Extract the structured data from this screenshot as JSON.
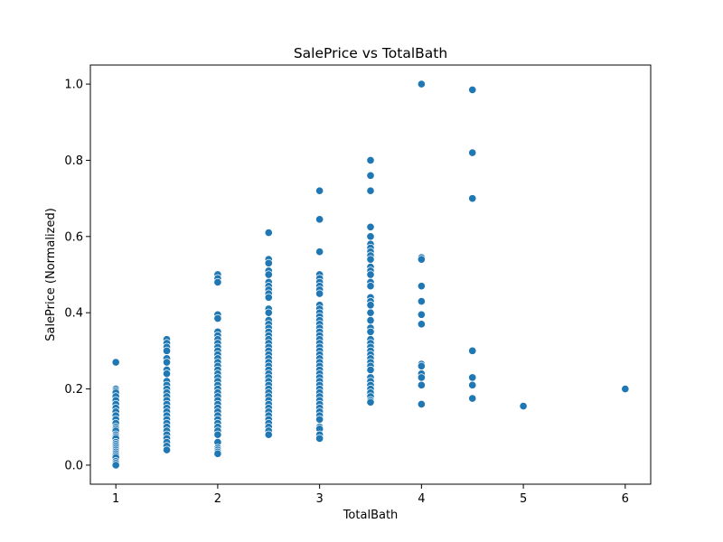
{
  "chart_data": {
    "type": "scatter",
    "title": "SalePrice vs TotalBath",
    "xlabel": "TotalBath",
    "ylabel": "SalePrice (Normalized)",
    "xlim": [
      0.75,
      6.25
    ],
    "ylim": [
      -0.05,
      1.05
    ],
    "x_ticks": [
      1,
      2,
      3,
      4,
      5,
      6
    ],
    "y_ticks": [
      0.0,
      0.2,
      0.4,
      0.6,
      0.8,
      1.0
    ],
    "y_tick_labels": [
      "0.0",
      "0.2",
      "0.4",
      "0.6",
      "0.8",
      "1.0"
    ],
    "grid": false,
    "legend": "none",
    "marker_color": "#1f77b4",
    "points": [
      {
        "x": 1,
        "y": 0.27
      },
      {
        "x": 1,
        "y": 0.2
      },
      {
        "x": 1,
        "y": 0.195
      },
      {
        "x": 1,
        "y": 0.19
      },
      {
        "x": 1,
        "y": 0.18
      },
      {
        "x": 1,
        "y": 0.17
      },
      {
        "x": 1,
        "y": 0.16
      },
      {
        "x": 1,
        "y": 0.15
      },
      {
        "x": 1,
        "y": 0.14
      },
      {
        "x": 1,
        "y": 0.13
      },
      {
        "x": 1,
        "y": 0.12
      },
      {
        "x": 1,
        "y": 0.11
      },
      {
        "x": 1,
        "y": 0.1
      },
      {
        "x": 1,
        "y": 0.095
      },
      {
        "x": 1,
        "y": 0.09
      },
      {
        "x": 1,
        "y": 0.08
      },
      {
        "x": 1,
        "y": 0.075
      },
      {
        "x": 1,
        "y": 0.07
      },
      {
        "x": 1,
        "y": 0.06
      },
      {
        "x": 1,
        "y": 0.055
      },
      {
        "x": 1,
        "y": 0.05
      },
      {
        "x": 1,
        "y": 0.045
      },
      {
        "x": 1,
        "y": 0.04
      },
      {
        "x": 1,
        "y": 0.035
      },
      {
        "x": 1,
        "y": 0.03
      },
      {
        "x": 1,
        "y": 0.025
      },
      {
        "x": 1,
        "y": 0.02
      },
      {
        "x": 1,
        "y": 0.01
      },
      {
        "x": 1,
        "y": 0.005
      },
      {
        "x": 1,
        "y": 0.0
      },
      {
        "x": 1.5,
        "y": 0.33
      },
      {
        "x": 1.5,
        "y": 0.32
      },
      {
        "x": 1.5,
        "y": 0.31
      },
      {
        "x": 1.5,
        "y": 0.3
      },
      {
        "x": 1.5,
        "y": 0.28
      },
      {
        "x": 1.5,
        "y": 0.27
      },
      {
        "x": 1.5,
        "y": 0.25
      },
      {
        "x": 1.5,
        "y": 0.24
      },
      {
        "x": 1.5,
        "y": 0.22
      },
      {
        "x": 1.5,
        "y": 0.21
      },
      {
        "x": 1.5,
        "y": 0.2
      },
      {
        "x": 1.5,
        "y": 0.19
      },
      {
        "x": 1.5,
        "y": 0.18
      },
      {
        "x": 1.5,
        "y": 0.17
      },
      {
        "x": 1.5,
        "y": 0.16
      },
      {
        "x": 1.5,
        "y": 0.15
      },
      {
        "x": 1.5,
        "y": 0.14
      },
      {
        "x": 1.5,
        "y": 0.13
      },
      {
        "x": 1.5,
        "y": 0.12
      },
      {
        "x": 1.5,
        "y": 0.11
      },
      {
        "x": 1.5,
        "y": 0.1
      },
      {
        "x": 1.5,
        "y": 0.09
      },
      {
        "x": 1.5,
        "y": 0.08
      },
      {
        "x": 1.5,
        "y": 0.07
      },
      {
        "x": 1.5,
        "y": 0.06
      },
      {
        "x": 1.5,
        "y": 0.05
      },
      {
        "x": 1.5,
        "y": 0.04
      },
      {
        "x": 2,
        "y": 0.5
      },
      {
        "x": 2,
        "y": 0.49
      },
      {
        "x": 2,
        "y": 0.48
      },
      {
        "x": 2,
        "y": 0.395
      },
      {
        "x": 2,
        "y": 0.385
      },
      {
        "x": 2,
        "y": 0.35
      },
      {
        "x": 2,
        "y": 0.34
      },
      {
        "x": 2,
        "y": 0.33
      },
      {
        "x": 2,
        "y": 0.32
      },
      {
        "x": 2,
        "y": 0.31
      },
      {
        "x": 2,
        "y": 0.3
      },
      {
        "x": 2,
        "y": 0.29
      },
      {
        "x": 2,
        "y": 0.28
      },
      {
        "x": 2,
        "y": 0.27
      },
      {
        "x": 2,
        "y": 0.26
      },
      {
        "x": 2,
        "y": 0.25
      },
      {
        "x": 2,
        "y": 0.24
      },
      {
        "x": 2,
        "y": 0.23
      },
      {
        "x": 2,
        "y": 0.22
      },
      {
        "x": 2,
        "y": 0.21
      },
      {
        "x": 2,
        "y": 0.2
      },
      {
        "x": 2,
        "y": 0.19
      },
      {
        "x": 2,
        "y": 0.18
      },
      {
        "x": 2,
        "y": 0.17
      },
      {
        "x": 2,
        "y": 0.16
      },
      {
        "x": 2,
        "y": 0.15
      },
      {
        "x": 2,
        "y": 0.14
      },
      {
        "x": 2,
        "y": 0.13
      },
      {
        "x": 2,
        "y": 0.12
      },
      {
        "x": 2,
        "y": 0.11
      },
      {
        "x": 2,
        "y": 0.1
      },
      {
        "x": 2,
        "y": 0.09
      },
      {
        "x": 2,
        "y": 0.08
      },
      {
        "x": 2,
        "y": 0.06
      },
      {
        "x": 2,
        "y": 0.045
      },
      {
        "x": 2,
        "y": 0.04
      },
      {
        "x": 2,
        "y": 0.035
      },
      {
        "x": 2,
        "y": 0.03
      },
      {
        "x": 2.5,
        "y": 0.61
      },
      {
        "x": 2.5,
        "y": 0.54
      },
      {
        "x": 2.5,
        "y": 0.53
      },
      {
        "x": 2.5,
        "y": 0.51
      },
      {
        "x": 2.5,
        "y": 0.5
      },
      {
        "x": 2.5,
        "y": 0.48
      },
      {
        "x": 2.5,
        "y": 0.47
      },
      {
        "x": 2.5,
        "y": 0.46
      },
      {
        "x": 2.5,
        "y": 0.45
      },
      {
        "x": 2.5,
        "y": 0.44
      },
      {
        "x": 2.5,
        "y": 0.41
      },
      {
        "x": 2.5,
        "y": 0.4
      },
      {
        "x": 2.5,
        "y": 0.38
      },
      {
        "x": 2.5,
        "y": 0.37
      },
      {
        "x": 2.5,
        "y": 0.36
      },
      {
        "x": 2.5,
        "y": 0.35
      },
      {
        "x": 2.5,
        "y": 0.34
      },
      {
        "x": 2.5,
        "y": 0.33
      },
      {
        "x": 2.5,
        "y": 0.32
      },
      {
        "x": 2.5,
        "y": 0.31
      },
      {
        "x": 2.5,
        "y": 0.3
      },
      {
        "x": 2.5,
        "y": 0.29
      },
      {
        "x": 2.5,
        "y": 0.28
      },
      {
        "x": 2.5,
        "y": 0.27
      },
      {
        "x": 2.5,
        "y": 0.26
      },
      {
        "x": 2.5,
        "y": 0.25
      },
      {
        "x": 2.5,
        "y": 0.24
      },
      {
        "x": 2.5,
        "y": 0.23
      },
      {
        "x": 2.5,
        "y": 0.22
      },
      {
        "x": 2.5,
        "y": 0.21
      },
      {
        "x": 2.5,
        "y": 0.2
      },
      {
        "x": 2.5,
        "y": 0.19
      },
      {
        "x": 2.5,
        "y": 0.18
      },
      {
        "x": 2.5,
        "y": 0.17
      },
      {
        "x": 2.5,
        "y": 0.16
      },
      {
        "x": 2.5,
        "y": 0.15
      },
      {
        "x": 2.5,
        "y": 0.14
      },
      {
        "x": 2.5,
        "y": 0.13
      },
      {
        "x": 2.5,
        "y": 0.12
      },
      {
        "x": 2.5,
        "y": 0.11
      },
      {
        "x": 2.5,
        "y": 0.1
      },
      {
        "x": 2.5,
        "y": 0.09
      },
      {
        "x": 2.5,
        "y": 0.08
      },
      {
        "x": 3,
        "y": 0.72
      },
      {
        "x": 3,
        "y": 0.645
      },
      {
        "x": 3,
        "y": 0.56
      },
      {
        "x": 3,
        "y": 0.5
      },
      {
        "x": 3,
        "y": 0.49
      },
      {
        "x": 3,
        "y": 0.48
      },
      {
        "x": 3,
        "y": 0.47
      },
      {
        "x": 3,
        "y": 0.46
      },
      {
        "x": 3,
        "y": 0.45
      },
      {
        "x": 3,
        "y": 0.42
      },
      {
        "x": 3,
        "y": 0.41
      },
      {
        "x": 3,
        "y": 0.4
      },
      {
        "x": 3,
        "y": 0.39
      },
      {
        "x": 3,
        "y": 0.38
      },
      {
        "x": 3,
        "y": 0.37
      },
      {
        "x": 3,
        "y": 0.36
      },
      {
        "x": 3,
        "y": 0.35
      },
      {
        "x": 3,
        "y": 0.34
      },
      {
        "x": 3,
        "y": 0.33
      },
      {
        "x": 3,
        "y": 0.32
      },
      {
        "x": 3,
        "y": 0.31
      },
      {
        "x": 3,
        "y": 0.3
      },
      {
        "x": 3,
        "y": 0.29
      },
      {
        "x": 3,
        "y": 0.28
      },
      {
        "x": 3,
        "y": 0.27
      },
      {
        "x": 3,
        "y": 0.26
      },
      {
        "x": 3,
        "y": 0.25
      },
      {
        "x": 3,
        "y": 0.24
      },
      {
        "x": 3,
        "y": 0.23
      },
      {
        "x": 3,
        "y": 0.22
      },
      {
        "x": 3,
        "y": 0.21
      },
      {
        "x": 3,
        "y": 0.2
      },
      {
        "x": 3,
        "y": 0.19
      },
      {
        "x": 3,
        "y": 0.18
      },
      {
        "x": 3,
        "y": 0.17
      },
      {
        "x": 3,
        "y": 0.16
      },
      {
        "x": 3,
        "y": 0.15
      },
      {
        "x": 3,
        "y": 0.14
      },
      {
        "x": 3,
        "y": 0.13
      },
      {
        "x": 3,
        "y": 0.12
      },
      {
        "x": 3,
        "y": 0.1
      },
      {
        "x": 3,
        "y": 0.095
      },
      {
        "x": 3,
        "y": 0.08
      },
      {
        "x": 3,
        "y": 0.07
      },
      {
        "x": 3.5,
        "y": 0.8
      },
      {
        "x": 3.5,
        "y": 0.76
      },
      {
        "x": 3.5,
        "y": 0.72
      },
      {
        "x": 3.5,
        "y": 0.625
      },
      {
        "x": 3.5,
        "y": 0.6
      },
      {
        "x": 3.5,
        "y": 0.58
      },
      {
        "x": 3.5,
        "y": 0.57
      },
      {
        "x": 3.5,
        "y": 0.56
      },
      {
        "x": 3.5,
        "y": 0.55
      },
      {
        "x": 3.5,
        "y": 0.54
      },
      {
        "x": 3.5,
        "y": 0.52
      },
      {
        "x": 3.5,
        "y": 0.51
      },
      {
        "x": 3.5,
        "y": 0.5
      },
      {
        "x": 3.5,
        "y": 0.48
      },
      {
        "x": 3.5,
        "y": 0.47
      },
      {
        "x": 3.5,
        "y": 0.44
      },
      {
        "x": 3.5,
        "y": 0.43
      },
      {
        "x": 3.5,
        "y": 0.42
      },
      {
        "x": 3.5,
        "y": 0.4
      },
      {
        "x": 3.5,
        "y": 0.38
      },
      {
        "x": 3.5,
        "y": 0.36
      },
      {
        "x": 3.5,
        "y": 0.35
      },
      {
        "x": 3.5,
        "y": 0.33
      },
      {
        "x": 3.5,
        "y": 0.32
      },
      {
        "x": 3.5,
        "y": 0.31
      },
      {
        "x": 3.5,
        "y": 0.3
      },
      {
        "x": 3.5,
        "y": 0.29
      },
      {
        "x": 3.5,
        "y": 0.28
      },
      {
        "x": 3.5,
        "y": 0.27
      },
      {
        "x": 3.5,
        "y": 0.26
      },
      {
        "x": 3.5,
        "y": 0.25
      },
      {
        "x": 3.5,
        "y": 0.23
      },
      {
        "x": 3.5,
        "y": 0.22
      },
      {
        "x": 3.5,
        "y": 0.21
      },
      {
        "x": 3.5,
        "y": 0.2
      },
      {
        "x": 3.5,
        "y": 0.19
      },
      {
        "x": 3.5,
        "y": 0.18
      },
      {
        "x": 3.5,
        "y": 0.17
      },
      {
        "x": 3.5,
        "y": 0.165
      },
      {
        "x": 4,
        "y": 1.0
      },
      {
        "x": 4,
        "y": 0.545
      },
      {
        "x": 4,
        "y": 0.54
      },
      {
        "x": 4,
        "y": 0.47
      },
      {
        "x": 4,
        "y": 0.43
      },
      {
        "x": 4,
        "y": 0.395
      },
      {
        "x": 4,
        "y": 0.37
      },
      {
        "x": 4,
        "y": 0.265
      },
      {
        "x": 4,
        "y": 0.26
      },
      {
        "x": 4,
        "y": 0.24
      },
      {
        "x": 4,
        "y": 0.23
      },
      {
        "x": 4,
        "y": 0.21
      },
      {
        "x": 4,
        "y": 0.16
      },
      {
        "x": 4.5,
        "y": 0.985
      },
      {
        "x": 4.5,
        "y": 0.82
      },
      {
        "x": 4.5,
        "y": 0.7
      },
      {
        "x": 4.5,
        "y": 0.3
      },
      {
        "x": 4.5,
        "y": 0.23
      },
      {
        "x": 4.5,
        "y": 0.21
      },
      {
        "x": 4.5,
        "y": 0.175
      },
      {
        "x": 5,
        "y": 0.155
      },
      {
        "x": 6,
        "y": 0.2
      }
    ]
  }
}
